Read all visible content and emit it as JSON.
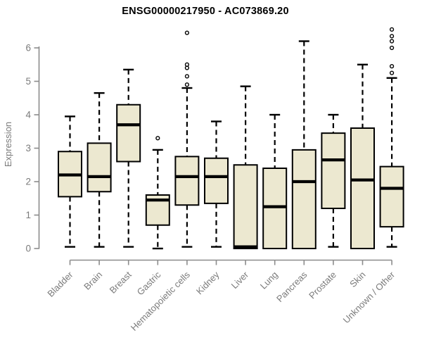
{
  "chart_data": {
    "type": "boxplot",
    "title": "ENSG00000217950 - AC073869.20",
    "xlabel": "",
    "ylabel": "Expression",
    "ylim": [
      0,
      6.6
    ],
    "yticks": [
      0,
      1,
      2,
      3,
      4,
      5,
      6
    ],
    "grid": false,
    "legend": "none",
    "categories": [
      "Bladder",
      "Brain",
      "Breast",
      "Gastric",
      "Hematopoietic cells",
      "Kidney",
      "Liver",
      "Lung",
      "Pancreas",
      "Prostate",
      "Skin",
      "Unknown / Other"
    ],
    "boxes": [
      {
        "name": "Bladder",
        "whisker_low": 0.05,
        "q1": 1.55,
        "median": 2.2,
        "q3": 2.9,
        "whisker_high": 3.95,
        "outliers": []
      },
      {
        "name": "Brain",
        "whisker_low": 0.05,
        "q1": 1.7,
        "median": 2.15,
        "q3": 3.15,
        "whisker_high": 4.65,
        "outliers": []
      },
      {
        "name": "Breast",
        "whisker_low": 0.05,
        "q1": 2.6,
        "median": 3.7,
        "q3": 4.3,
        "whisker_high": 5.35,
        "outliers": []
      },
      {
        "name": "Gastric",
        "whisker_low": 0.0,
        "q1": 0.7,
        "median": 1.45,
        "q3": 1.6,
        "whisker_high": 2.95,
        "outliers": [
          3.3
        ]
      },
      {
        "name": "Hematopoietic cells",
        "whisker_low": 0.05,
        "q1": 1.3,
        "median": 2.15,
        "q3": 2.75,
        "whisker_high": 4.8,
        "outliers": [
          4.9,
          5.15,
          5.4,
          5.5,
          6.45
        ]
      },
      {
        "name": "Kidney",
        "whisker_low": 0.05,
        "q1": 1.35,
        "median": 2.15,
        "q3": 2.7,
        "whisker_high": 3.8,
        "outliers": []
      },
      {
        "name": "Liver",
        "whisker_low": 0.0,
        "q1": 0.0,
        "median": 0.05,
        "q3": 2.5,
        "whisker_high": 4.85,
        "outliers": []
      },
      {
        "name": "Lung",
        "whisker_low": 0.0,
        "q1": 0.0,
        "median": 1.25,
        "q3": 2.4,
        "whisker_high": 4.0,
        "outliers": []
      },
      {
        "name": "Pancreas",
        "whisker_low": 0.0,
        "q1": 0.0,
        "median": 2.0,
        "q3": 2.95,
        "whisker_high": 6.2,
        "outliers": []
      },
      {
        "name": "Prostate",
        "whisker_low": 0.05,
        "q1": 1.2,
        "median": 2.65,
        "q3": 3.45,
        "whisker_high": 4.0,
        "outliers": []
      },
      {
        "name": "Skin",
        "whisker_low": 0.0,
        "q1": 0.0,
        "median": 2.05,
        "q3": 3.6,
        "whisker_high": 5.5,
        "outliers": []
      },
      {
        "name": "Unknown / Other",
        "whisker_low": 0.05,
        "q1": 0.65,
        "median": 1.8,
        "q3": 2.45,
        "whisker_high": 5.1,
        "outliers": [
          5.25,
          5.45,
          6.0,
          6.2,
          6.35,
          6.55
        ]
      }
    ]
  },
  "colors": {
    "box_fill": "#ECE8D0",
    "box_stroke": "#000000",
    "median": "#000000",
    "whisker": "#000000",
    "outlier_stroke": "#000000",
    "outlier_fill": "#FFFFFF",
    "axis": "#8C8C8C",
    "tick_text": "#7B7B7B",
    "title_text": "#000000",
    "background": "#FFFFFF"
  }
}
